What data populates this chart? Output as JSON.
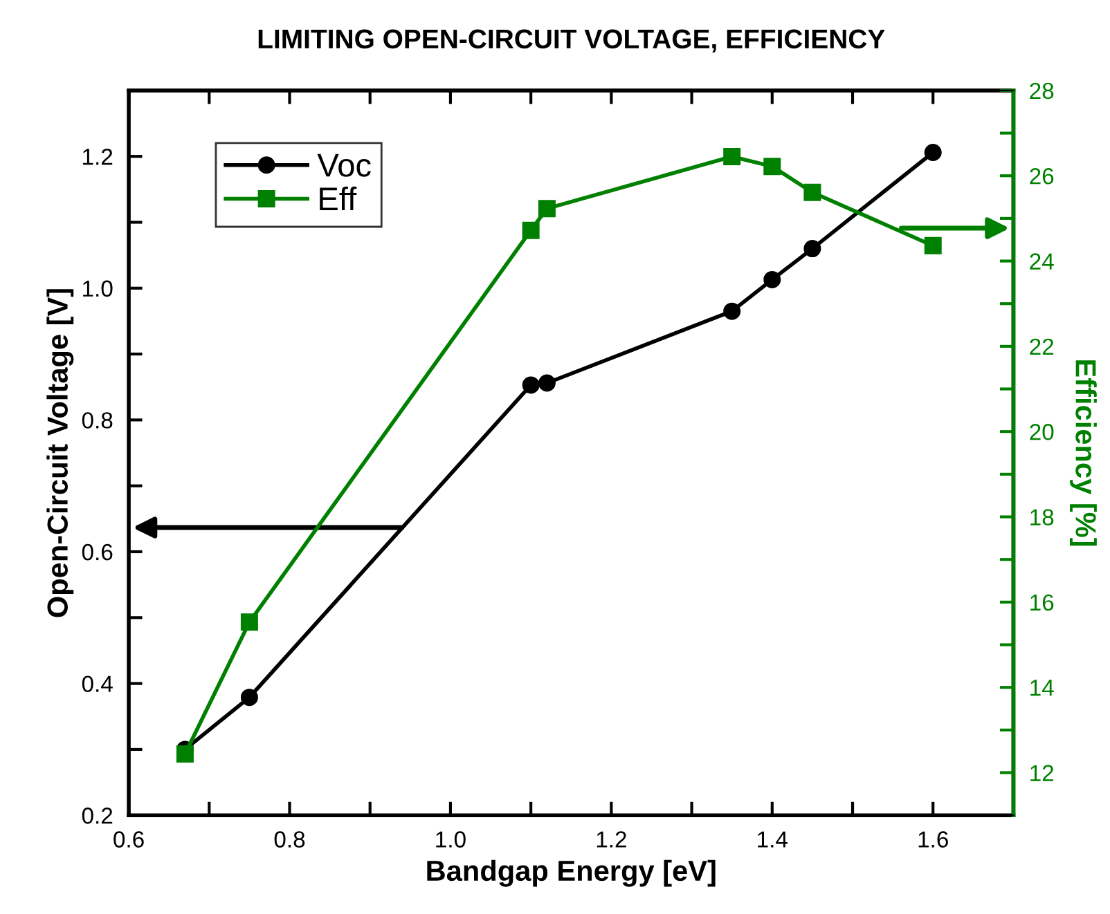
{
  "chart_data": {
    "type": "line",
    "title": "LIMITING OPEN-CIRCUIT VOLTAGE, EFFICIENCY",
    "xlabel": "Bandgap Energy [eV]",
    "ylabel": "Open-Circuit Voltage [V]",
    "y2label": "Efficiency [%]",
    "x": [
      0.67,
      0.75,
      1.1,
      1.12,
      1.35,
      1.4,
      1.45,
      1.6
    ],
    "series": [
      {
        "name": "Voc",
        "color": "#000000",
        "marker": "circle",
        "values": [
          0.3,
          0.379,
          0.853,
          0.856,
          0.965,
          1.013,
          1.06,
          1.206
        ]
      },
      {
        "name": "Eff",
        "color": "#008000",
        "marker": "square",
        "axis": "y2",
        "values": [
          12.44,
          15.53,
          24.72,
          25.23,
          26.45,
          26.22,
          25.61,
          24.36
        ]
      }
    ],
    "xlim": [
      0.6,
      1.7
    ],
    "xticks": [
      0.6,
      {
        "value": 0.7,
        "label": null
      },
      0.8,
      {
        "value": 0.9,
        "label": null
      },
      {
        "value": 1.0,
        "label": "1.0"
      },
      {
        "value": 1.1,
        "label": null
      },
      1.2,
      {
        "value": 1.3,
        "label": null
      },
      1.4,
      {
        "value": 1.5,
        "label": null
      },
      1.6
    ],
    "ylim": [
      0.2,
      1.3
    ],
    "yticks": [
      0.2,
      {
        "value": 0.3,
        "label": null
      },
      0.4,
      {
        "value": 0.5,
        "label": null
      },
      0.6,
      {
        "value": 0.7,
        "label": null
      },
      0.8,
      {
        "value": 0.9,
        "label": null
      },
      {
        "value": 1.0,
        "label": "1.0"
      },
      {
        "value": 1.1,
        "label": null
      },
      1.2
    ],
    "y2lim": [
      11,
      28
    ],
    "y2ticks": [
      12,
      {
        "value": 13,
        "label": null
      },
      14,
      {
        "value": 15,
        "label": null
      },
      16,
      {
        "value": 17,
        "label": null
      },
      18,
      {
        "value": 19,
        "label": null
      },
      20,
      {
        "value": 21,
        "label": null
      },
      22,
      {
        "value": 23,
        "label": null
      },
      24,
      {
        "value": 25,
        "label": null
      },
      26,
      {
        "value": 27,
        "label": null
      },
      28
    ],
    "legend": "top left",
    "grid": false,
    "line_style": "solid"
  }
}
